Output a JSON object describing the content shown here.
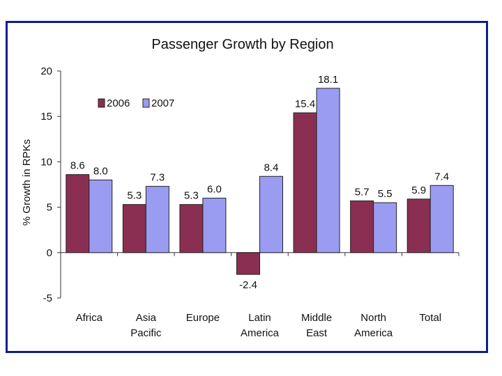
{
  "chart_data": {
    "type": "bar",
    "title": "Passenger Growth by Region",
    "ylabel": "% Growth in RPKs",
    "xlabel": "",
    "ylim": [
      -5,
      20
    ],
    "yticks": [
      -5,
      0,
      5,
      10,
      15,
      20
    ],
    "categories": [
      [
        "Africa"
      ],
      [
        "Asia",
        "Pacific"
      ],
      [
        "Europe"
      ],
      [
        "Latin",
        "America"
      ],
      [
        "Middle",
        "East"
      ],
      [
        "North",
        "America"
      ],
      [
        "Total"
      ]
    ],
    "series": [
      {
        "name": "2006",
        "color": "#8b2f52",
        "values": [
          8.6,
          5.3,
          5.3,
          -2.4,
          15.4,
          5.7,
          5.9
        ],
        "labels": [
          "8.6",
          "5.3",
          "5.3",
          "-2.4",
          "15.4",
          "5.7",
          "5.9"
        ]
      },
      {
        "name": "2007",
        "color": "#9a9cf2",
        "values": [
          8.0,
          7.3,
          6.0,
          8.4,
          18.1,
          5.5,
          7.4
        ],
        "labels": [
          "8.0",
          "7.3",
          "6.0",
          "8.4",
          "18.1",
          "5.5",
          "7.4"
        ]
      }
    ],
    "legend": "top-left"
  },
  "colors": {
    "frame": "#0c1f8c"
  }
}
